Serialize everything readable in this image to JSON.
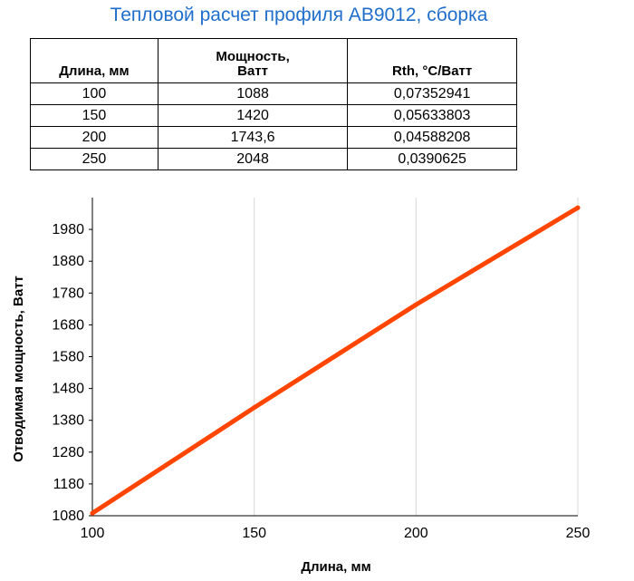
{
  "title": "Тепловой расчет профиля AB9012, сборка",
  "table": {
    "headers": [
      "Длина, мм",
      "Мощность,\nВатт",
      "Rth, °C/Ватт"
    ],
    "rows": [
      [
        "100",
        "1088",
        "0,07352941"
      ],
      [
        "150",
        "1420",
        "0,05633803"
      ],
      [
        "200",
        "1743,6",
        "0,04588208"
      ],
      [
        "250",
        "2048",
        "0,0390625"
      ]
    ]
  },
  "chart_data": {
    "type": "line",
    "title": "",
    "xlabel": "Длина, мм",
    "ylabel": "Отводимая мощность, Ватт",
    "x": [
      100,
      150,
      200,
      250
    ],
    "series": [
      {
        "name": "",
        "values": [
          1088,
          1420,
          1743.6,
          2048
        ],
        "color": "#ff4500"
      }
    ],
    "xlim": [
      100,
      250
    ],
    "ylim": [
      1080,
      2080
    ],
    "xticks": [
      "100",
      "150",
      "200",
      "250"
    ],
    "yticks": [
      "1080",
      "1180",
      "1280",
      "1380",
      "1480",
      "1580",
      "1680",
      "1780",
      "1880",
      "1980"
    ],
    "grid": true,
    "legend": "none"
  }
}
